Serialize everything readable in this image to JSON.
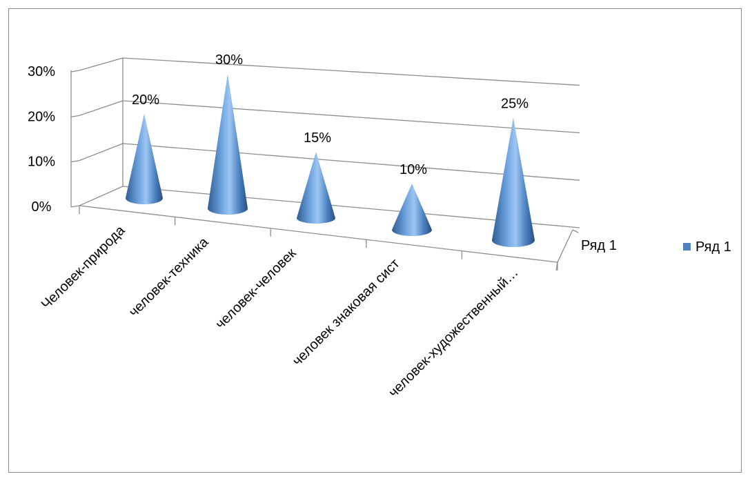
{
  "chart_data": {
    "type": "bar",
    "style": "3d-cone",
    "categories": [
      "Человек-природа",
      "человек-техника",
      "человек-человек",
      "человек знаковая сист",
      "человек-художественный…"
    ],
    "series": [
      {
        "name": "Ряд 1",
        "values": [
          20,
          30,
          15,
          10,
          25
        ],
        "color": "#4f81bd"
      }
    ],
    "data_labels": [
      "20%",
      "30%",
      "15%",
      "10%",
      "25%"
    ],
    "y_ticks": [
      "0%",
      "10%",
      "20%",
      "30%"
    ],
    "ylim": [
      0,
      30
    ],
    "depth_axis_label": "Ряд 1",
    "legend": {
      "position": "right",
      "label": "Ряд 1"
    },
    "grid": true
  }
}
